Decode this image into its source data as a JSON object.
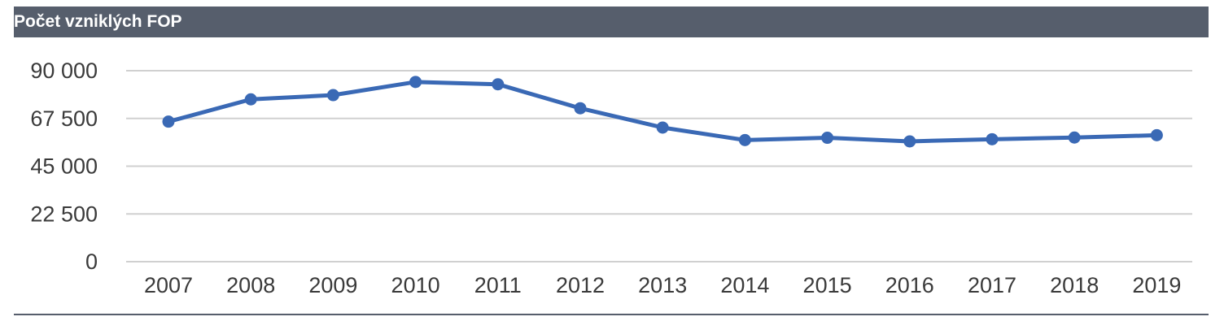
{
  "title": "Počet vzniklých FOP",
  "colors": {
    "title_bar": "#565e6c",
    "series": "#3a69b5",
    "grid": "#d0d0d0"
  },
  "chart_data": {
    "type": "line",
    "title": "Počet vzniklých FOP",
    "xlabel": "",
    "ylabel": "",
    "x": [
      "2007",
      "2008",
      "2009",
      "2010",
      "2011",
      "2012",
      "2013",
      "2014",
      "2015",
      "2016",
      "2017",
      "2018",
      "2019"
    ],
    "series": [
      {
        "values": [
          66000,
          76500,
          78500,
          84700,
          83600,
          72300,
          63200,
          57300,
          58400,
          56700,
          57700,
          58500,
          59600
        ]
      }
    ],
    "y_ticks": [
      "0",
      "22 500",
      "45 000",
      "67 500",
      "90 000"
    ],
    "ylim": [
      0,
      90000
    ],
    "grid": true,
    "legend": "none"
  }
}
